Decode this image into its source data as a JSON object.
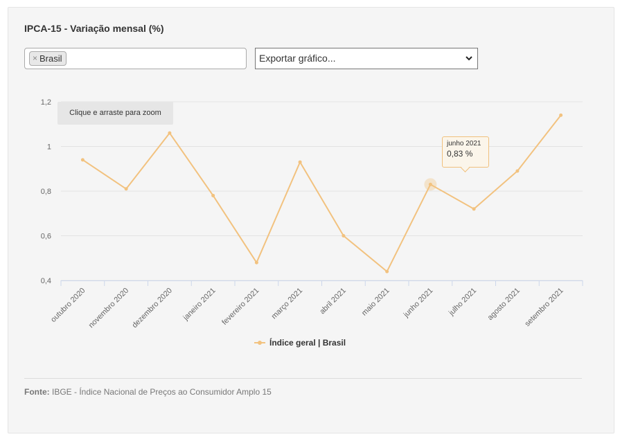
{
  "header": {
    "title": "IPCA-15 - Variação mensal (%)"
  },
  "filter": {
    "tags": [
      {
        "label": "Brasil",
        "remove_symbol": "×"
      }
    ]
  },
  "export": {
    "selected": "Exportar gráfico..."
  },
  "zoom_hint": "Clique e arraste para zoom",
  "tooltip": {
    "label": "junho 2021",
    "value": "0,83 %"
  },
  "legend": {
    "label": "Índice geral | Brasil",
    "color": "#f2c27f"
  },
  "source": {
    "prefix": "Fonte:",
    "text": "IBGE - Índice Nacional de Preços ao Consumidor Amplo 15"
  },
  "chart_data": {
    "type": "line",
    "title": "IPCA-15 - Variação mensal (%)",
    "xlabel": "",
    "ylabel": "",
    "categories": [
      "outubro 2020",
      "novembro 2020",
      "dezembro 2020",
      "janeiro 2021",
      "fevereiro 2021",
      "março 2021",
      "abril 2021",
      "maio 2021",
      "junho 2021",
      "julho 2021",
      "agosto 2021",
      "setembro 2021"
    ],
    "series": [
      {
        "name": "Índice geral | Brasil",
        "values": [
          0.94,
          0.81,
          1.06,
          0.78,
          0.48,
          0.93,
          0.6,
          0.44,
          0.83,
          0.72,
          0.89,
          1.14
        ]
      }
    ],
    "ylim": [
      0.4,
      1.2
    ],
    "yticks": [
      0.4,
      0.6,
      0.8,
      1.0,
      1.2
    ],
    "ytick_labels": [
      "0,4",
      "0,6",
      "0,8",
      "1",
      "1,2"
    ],
    "grid": true,
    "legend_position": "bottom-center",
    "highlighted_category": "junho 2021",
    "color": "#f2c27f"
  }
}
